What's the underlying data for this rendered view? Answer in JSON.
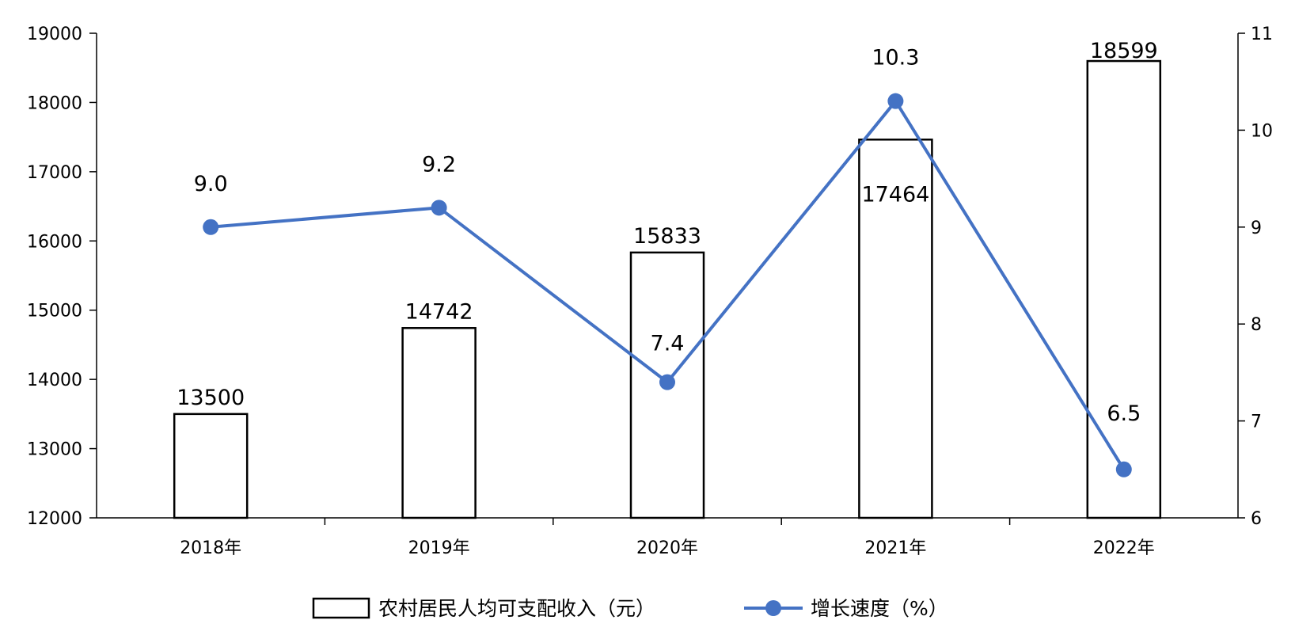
{
  "chart_data": {
    "type": "bar",
    "title": "",
    "categories": [
      "2018年",
      "2019年",
      "2020年",
      "2021年",
      "2022年"
    ],
    "series": [
      {
        "name": "农村居民人均可支配收入（元）",
        "type": "bar",
        "axis": "left",
        "values": [
          13500,
          14742,
          15833,
          17464,
          18599
        ],
        "labels": [
          "13500",
          "14742",
          "15833",
          "17464",
          "18599"
        ]
      },
      {
        "name": "增长速度（%）",
        "type": "line",
        "axis": "right",
        "values": [
          9.0,
          9.2,
          7.4,
          10.3,
          6.5
        ],
        "labels": [
          "9.0",
          "9.2",
          "7.4",
          "10.3",
          "6.5"
        ]
      }
    ],
    "y_left": {
      "range": [
        12000,
        19000
      ],
      "ticks": [
        "12000",
        "13000",
        "14000",
        "15000",
        "16000",
        "17000",
        "18000",
        "19000"
      ]
    },
    "y_right": {
      "range": [
        6,
        11
      ],
      "ticks": [
        "6",
        "7",
        "8",
        "9",
        "10",
        "11"
      ]
    },
    "grid": false,
    "legend": "bottom",
    "colors": {
      "bar_fill": "#ffffff",
      "bar_stroke": "#000000",
      "line": "#4472C4",
      "axis": "#000000"
    }
  }
}
